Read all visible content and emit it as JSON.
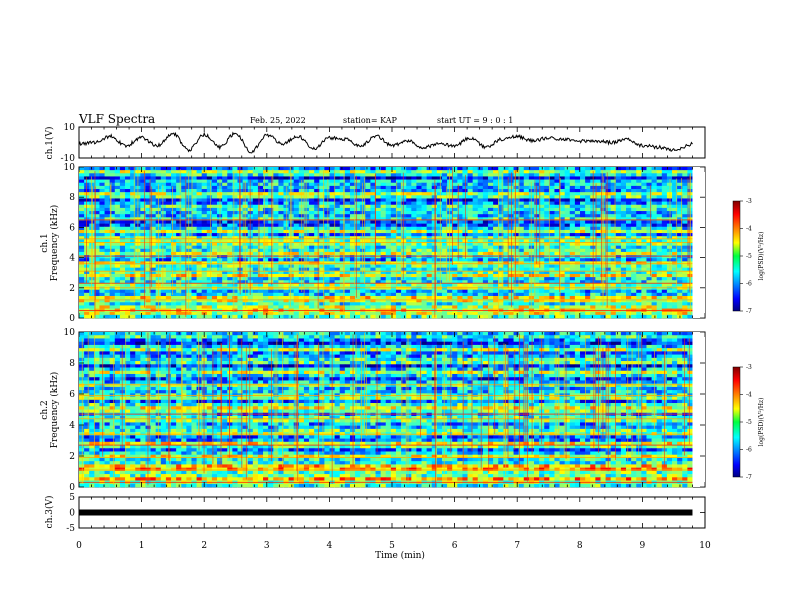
{
  "header": {
    "title": "VLF Spectra",
    "date": "Feb. 25, 2022",
    "station": "station= KAP",
    "start": "start  UT =   9 : 0  : 1"
  },
  "chart_data": [
    {
      "type": "line",
      "panel": "ch1-waveform",
      "ylabel": "ch.1(V)",
      "ylim": [
        -10,
        10
      ],
      "yticks": [
        "10",
        "-10"
      ],
      "x": [
        0,
        0.25,
        0.5,
        0.75,
        1.0,
        1.25,
        1.5,
        1.75,
        2.0,
        2.25,
        2.5,
        2.75,
        3.0,
        3.25,
        3.5,
        3.75,
        4.0,
        4.25,
        4.5,
        4.75,
        5.0,
        5.25,
        5.5,
        5.75,
        6.0,
        6.25,
        6.5,
        6.75,
        7.0,
        7.25,
        7.5,
        7.75,
        8.0,
        8.25,
        8.5,
        8.75,
        9.0,
        9.25,
        9.5,
        9.8
      ],
      "values": [
        -1,
        0,
        4,
        -2,
        3,
        -2,
        6,
        -5,
        5,
        -3,
        6,
        -6,
        5,
        -1,
        4,
        -4,
        3,
        2,
        -2,
        4,
        -2,
        1,
        -3,
        -1,
        -2,
        3,
        -3,
        2,
        4,
        1,
        3,
        2,
        1,
        1,
        0,
        2,
        -2,
        -3,
        -5,
        -1
      ]
    },
    {
      "type": "heatmap",
      "panel": "ch1-spectrogram",
      "ylabel_top": "ch.1",
      "ylabel": "Frequency (kHz)",
      "ylim": [
        0,
        10
      ],
      "yticks": [
        "0",
        "2",
        "4",
        "6",
        "8",
        "10"
      ],
      "xlim": [
        0,
        9.8
      ],
      "colorscale": "jet",
      "colorbar_label": "log(PSD)(V²/Hz)",
      "colorbar_ticks": [
        "-3",
        "-4",
        "-5",
        "-6",
        "-7"
      ],
      "colorbar_range": [
        -7,
        -3
      ]
    },
    {
      "type": "heatmap",
      "panel": "ch2-spectrogram",
      "ylabel_top": "ch.2",
      "ylabel": "Frequency (kHz)",
      "ylim": [
        0,
        10
      ],
      "yticks": [
        "0",
        "2",
        "4",
        "6",
        "8",
        "10"
      ],
      "xlim": [
        0,
        9.8
      ],
      "colorscale": "jet",
      "colorbar_label": "log(PSD)(V²/Hz)",
      "colorbar_ticks": [
        "-3",
        "-4",
        "-5",
        "-6",
        "-7"
      ],
      "colorbar_range": [
        -7,
        -3
      ]
    },
    {
      "type": "line",
      "panel": "ch3-waveform",
      "ylabel": "ch.3(V)",
      "ylim": [
        -5,
        5
      ],
      "yticks": [
        "5",
        "0",
        "-5"
      ],
      "x": [
        0,
        9.8
      ],
      "values": [
        0,
        0
      ]
    }
  ],
  "xaxis": {
    "label": "Time  (min)",
    "ticks": [
      "0",
      "1",
      "2",
      "3",
      "4",
      "5",
      "6",
      "7",
      "8",
      "9",
      "10"
    ],
    "xlim": [
      0,
      10
    ]
  },
  "colors": {
    "line": "#000000",
    "jet_low": "#00007f",
    "jet_high": "#7f0000"
  }
}
